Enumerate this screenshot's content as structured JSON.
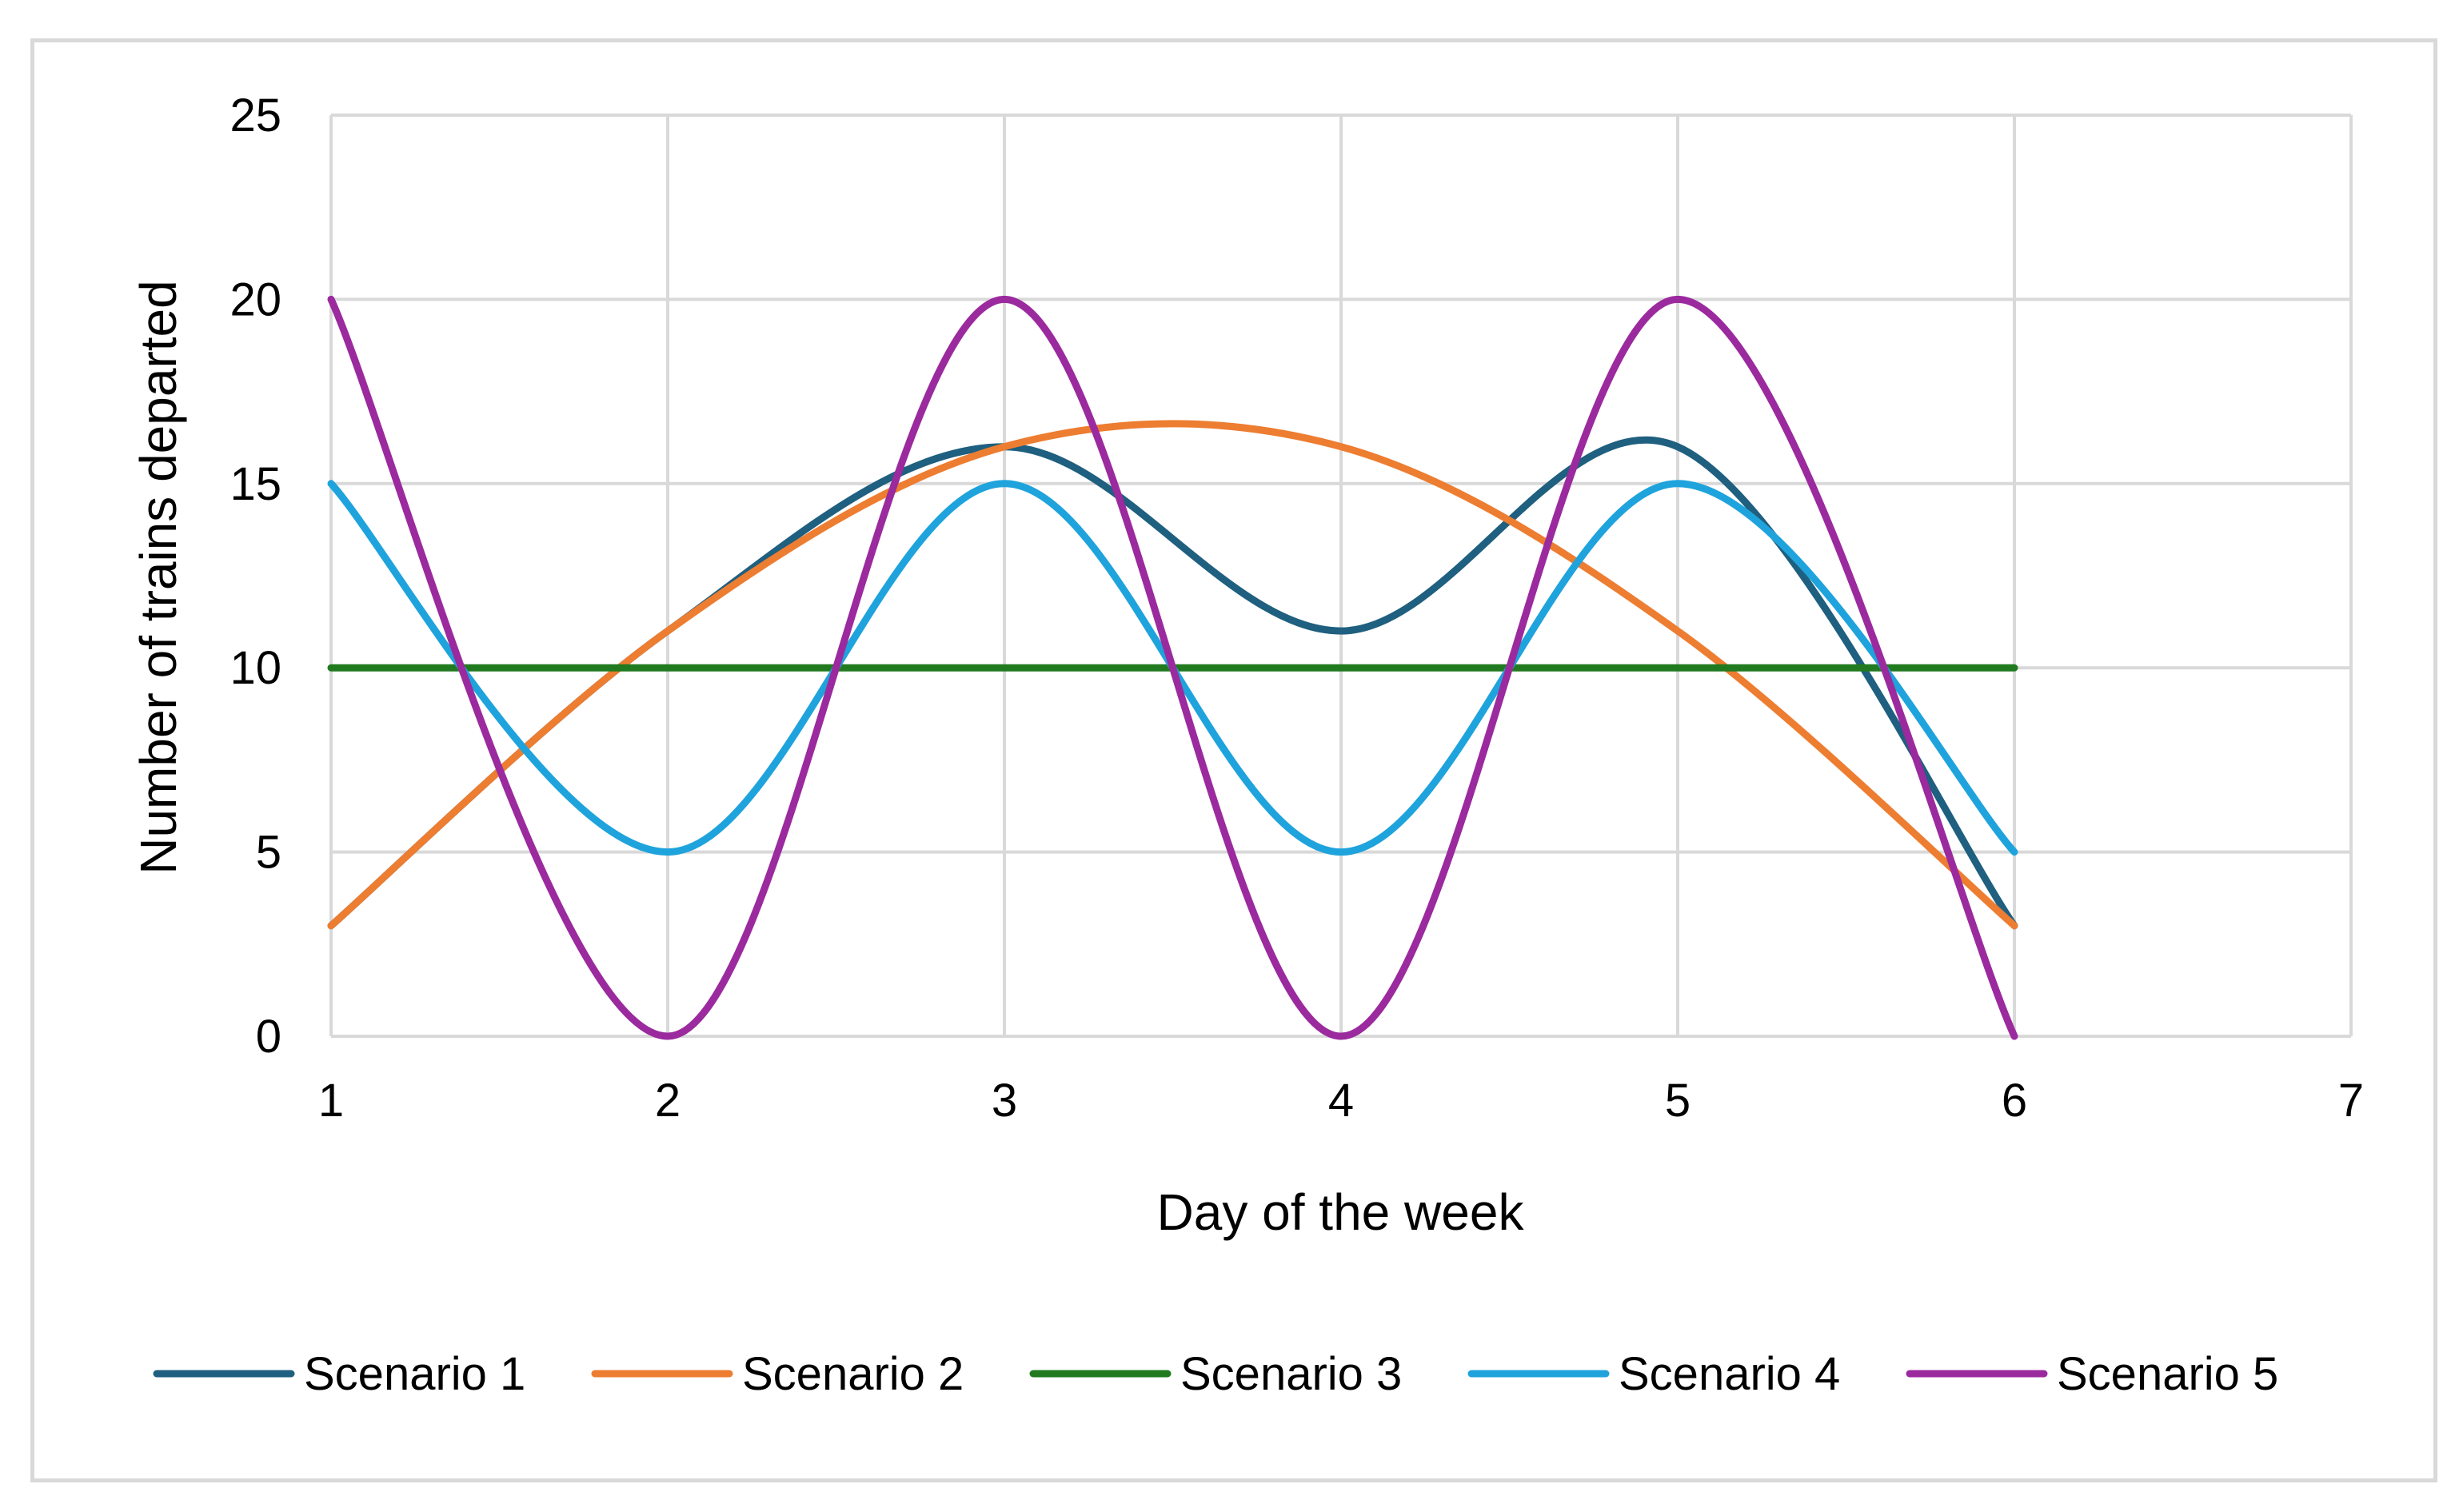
{
  "chart_data": {
    "type": "line",
    "title": "",
    "xlabel": "Day of the week",
    "ylabel": "Number of trains departed",
    "xlim": [
      1,
      7
    ],
    "ylim": [
      0,
      25
    ],
    "x_ticks": [
      1,
      2,
      3,
      4,
      5,
      6,
      7
    ],
    "y_ticks": [
      0,
      5,
      10,
      15,
      20,
      25
    ],
    "grid": true,
    "smoothed": true,
    "legend_position": "bottom",
    "x": [
      1,
      2,
      3,
      4,
      5,
      6
    ],
    "series": [
      {
        "name": "Scenario 1",
        "color": "#1f5f7f",
        "values": [
          3,
          11,
          16,
          11,
          16,
          3
        ]
      },
      {
        "name": "Scenario 2",
        "color": "#ed7d31",
        "values": [
          3,
          11,
          16,
          16,
          11,
          3
        ]
      },
      {
        "name": "Scenario 3",
        "color": "#217a1f",
        "values": [
          10,
          10,
          10,
          10,
          10,
          10
        ]
      },
      {
        "name": "Scenario 4",
        "color": "#1fa3dc",
        "values": [
          15,
          5,
          15,
          5,
          15,
          5
        ]
      },
      {
        "name": "Scenario 5",
        "color": "#9b2a9e",
        "values": [
          20,
          0,
          20,
          0,
          20,
          0
        ]
      }
    ]
  }
}
